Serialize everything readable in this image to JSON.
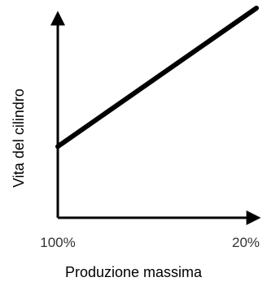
{
  "chart_data": {
    "type": "line",
    "xlabel": "Produzione massima",
    "ylabel": "Vita del cilindro",
    "x_tick_labels": [
      "100%",
      "20%"
    ],
    "x_direction": "decreasing",
    "ylim": [
      0,
      100
    ],
    "grid": false,
    "legend": "none",
    "series": [
      {
        "points": [
          {
            "x": "100%",
            "y": 34
          },
          {
            "x": "20%",
            "y": 100
          }
        ]
      }
    ],
    "colors": {
      "line": "#000000",
      "axes": "#000000",
      "tick_text": "#333333"
    }
  }
}
